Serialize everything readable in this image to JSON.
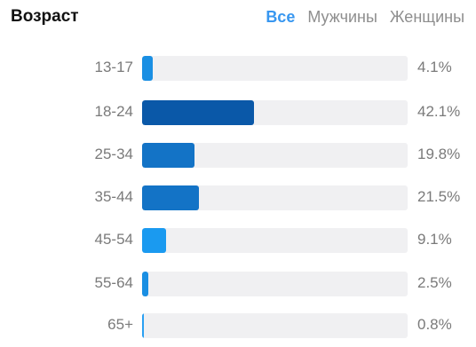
{
  "header": {
    "title": "Возраст",
    "tabs": [
      {
        "label": "Все",
        "active": true
      },
      {
        "label": "Мужчины",
        "active": false
      },
      {
        "label": "Женщины",
        "active": false
      }
    ]
  },
  "age_groups": [
    {
      "label": "13-17",
      "value": "4.1%",
      "fill_fraction": 0.041,
      "color": "#1a8fe3"
    },
    {
      "label": "18-24",
      "value": "42.1%",
      "fill_fraction": 0.421,
      "color": "#0a58a8"
    },
    {
      "label": "25-34",
      "value": "19.8%",
      "fill_fraction": 0.198,
      "color": "#1373c6"
    },
    {
      "label": "35-44",
      "value": "21.5%",
      "fill_fraction": 0.215,
      "color": "#1373c6"
    },
    {
      "label": "45-54",
      "value": "9.1%",
      "fill_fraction": 0.091,
      "color": "#1a9af0"
    },
    {
      "label": "55-64",
      "value": "2.5%",
      "fill_fraction": 0.025,
      "color": "#1a8fe3"
    },
    {
      "label": "65+",
      "value": "0.8%",
      "fill_fraction": 0.008,
      "color": "#2aa0f2"
    }
  ]
}
